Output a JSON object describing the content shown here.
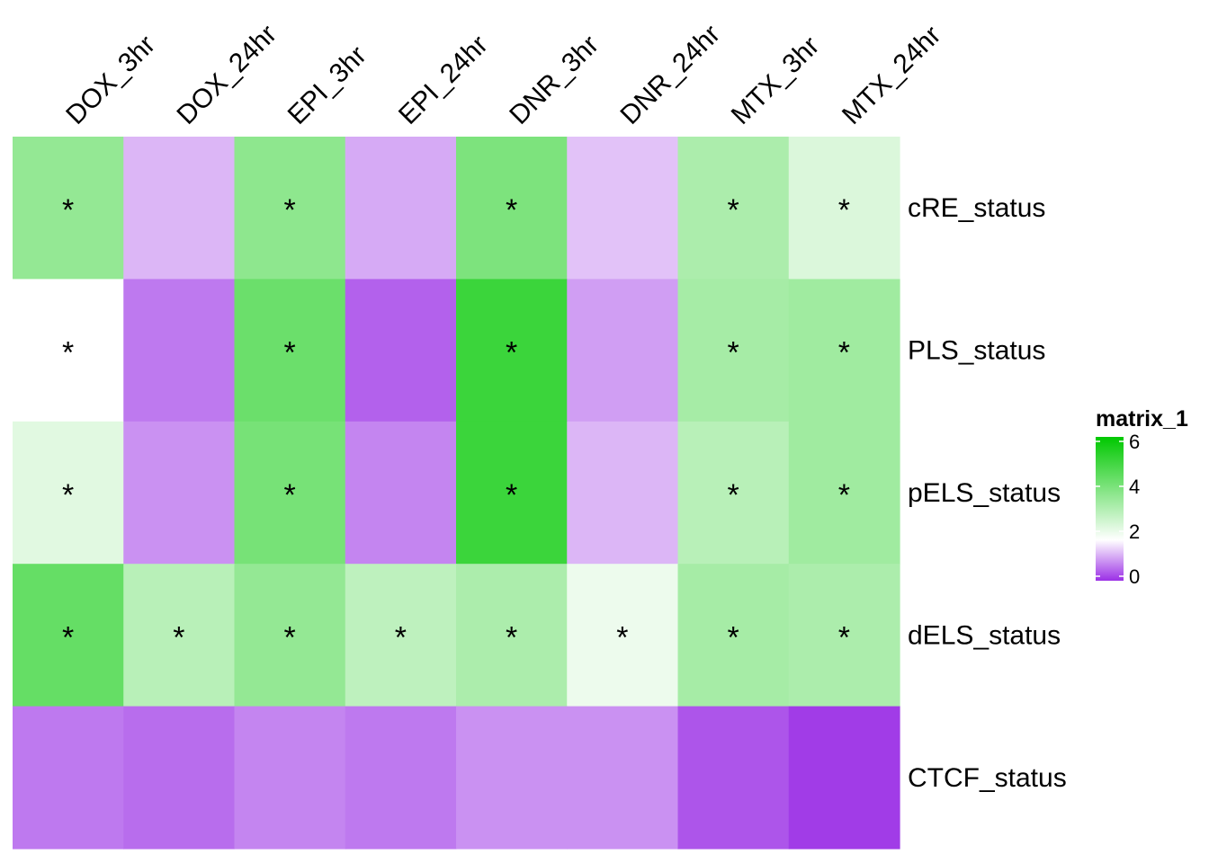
{
  "chart_data": {
    "type": "heatmap",
    "columns": [
      "DOX_3hr",
      "DOX_24hr",
      "EPI_3hr",
      "EPI_24hr",
      "DNR_3hr",
      "DNR_24hr",
      "MTX_3hr",
      "MTX_24hr"
    ],
    "rows": [
      "cRE_status",
      "PLS_status",
      "pELS_status",
      "dELS_status",
      "CTCF_status"
    ],
    "values": [
      [
        3.5,
        1.1,
        3.6,
        1.0,
        3.9,
        1.2,
        3.1,
        2.3
      ],
      [
        1.7,
        0.6,
        4.2,
        0.4,
        5.0,
        0.9,
        3.2,
        3.3
      ],
      [
        2.2,
        0.8,
        4.0,
        0.7,
        5.0,
        1.1,
        2.9,
        3.3
      ],
      [
        4.3,
        2.9,
        3.5,
        2.8,
        3.1,
        2.0,
        3.2,
        3.1
      ],
      [
        0.6,
        0.5,
        0.7,
        0.6,
        0.8,
        0.8,
        0.3,
        0.1
      ]
    ],
    "significant": [
      [
        true,
        false,
        true,
        false,
        true,
        false,
        true,
        true
      ],
      [
        true,
        false,
        true,
        false,
        true,
        false,
        true,
        true
      ],
      [
        true,
        false,
        true,
        false,
        true,
        false,
        true,
        true
      ],
      [
        true,
        true,
        true,
        true,
        true,
        true,
        true,
        true
      ],
      [
        false,
        false,
        false,
        false,
        false,
        false,
        false,
        false
      ]
    ],
    "significance_marker": "*",
    "legend": {
      "title": "matrix_1",
      "ticks": [
        0,
        2,
        4,
        6
      ],
      "range": [
        0,
        6
      ],
      "colors": [
        {
          "value": 0,
          "color": "#9b30e6"
        },
        {
          "value": 1.7,
          "color": "#ffffff"
        },
        {
          "value": 6,
          "color": "#00c800"
        }
      ]
    }
  }
}
